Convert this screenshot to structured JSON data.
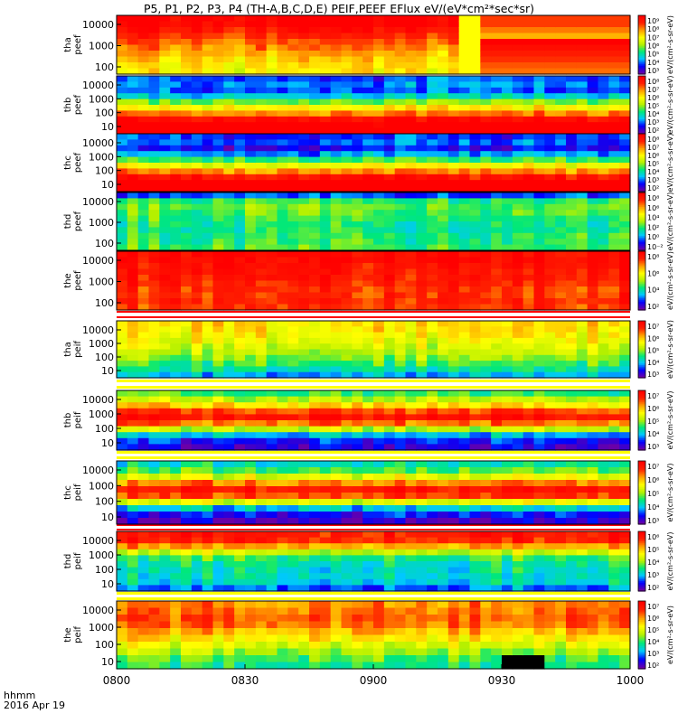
{
  "title": "P5, P1, P2, P3, P4 (TH-A,B,C,D,E) PEIF,PEEF EFlux eV/(eV*cm²*sec*sr)",
  "footer": {
    "line1": "hhmm",
    "line2": "2016 Apr 19"
  },
  "colors": {
    "scale": [
      "#6a00a8",
      "#0000ff",
      "#00c8ff",
      "#00e87a",
      "#b4f000",
      "#ffff00",
      "#ffa000",
      "#ff2000",
      "#ff0000"
    ],
    "gap_stripe": "#ffff00",
    "gap_red": "#ff0000"
  },
  "chart_data": {
    "type": "heatmap",
    "x_axis": {
      "label": "hhmm",
      "date": "2016 Apr 19",
      "ticks": [
        "0800",
        "0830",
        "0900",
        "0930",
        "1000"
      ],
      "range": [
        "0800",
        "1000"
      ]
    },
    "colorbar_scale": "log",
    "panels": [
      {
        "id": "tha-peef",
        "label_line1": "tha",
        "label_line2": "peef",
        "y_ticks": [
          "10000",
          "1000",
          "100"
        ],
        "colorbar_ticks": [
          "10⁹",
          "10⁸",
          "10⁷",
          "10⁶",
          "10⁵",
          "10⁴",
          "10³"
        ],
        "colorbar_label": "eV/(cm²-s-sr-eV)",
        "profile": [
          8,
          8,
          7.5,
          7,
          6.6,
          6.2,
          5.8,
          5.5,
          5.2,
          5
        ],
        "event": "gap-near-0925"
      },
      {
        "id": "thb-peef",
        "label_line1": "thb",
        "label_line2": "peef",
        "y_ticks": [
          "10000",
          "1000",
          "100",
          "10"
        ],
        "colorbar_ticks": [
          "10⁸",
          "10⁷",
          "10⁶",
          "10⁵",
          "10⁴",
          "10³",
          "10²"
        ],
        "colorbar_label": "eV/(cm²-s-sr-eV)",
        "profile": [
          1.3,
          1.6,
          1.4,
          2.2,
          3.6,
          5,
          6.2,
          7.6,
          8.6,
          8.8
        ]
      },
      {
        "id": "thc-peef",
        "label_line1": "thc",
        "label_line2": "peef",
        "y_ticks": [
          "10000",
          "1000",
          "100",
          "10"
        ],
        "colorbar_ticks": [
          "10⁸",
          "10⁷",
          "10⁶",
          "10⁵",
          "10⁴",
          "10³",
          "10²"
        ],
        "colorbar_label": "eV/(cm²-s-sr-eV)",
        "profile": [
          1.2,
          1.4,
          0.8,
          1.8,
          3.2,
          4.8,
          6.2,
          7.5,
          8.5,
          8.8
        ]
      },
      {
        "id": "thd-peef",
        "label_line1": "thd",
        "label_line2": "peef",
        "y_ticks": [
          "10000",
          "1000",
          "100"
        ],
        "colorbar_ticks": [
          "10⁸",
          "10⁶",
          "10⁴",
          "10²",
          "10⁰",
          "10⁻²"
        ],
        "colorbar_label": "eV/(cm²-s-sr-eV)",
        "profile": [
          1.4,
          3.2,
          3.6,
          3.4,
          3.2,
          3,
          3,
          3.1,
          3.2,
          3.4
        ]
      },
      {
        "id": "the-peef",
        "label_line1": "the",
        "label_line2": "peef",
        "y_ticks": [
          "10000",
          "1000",
          "100"
        ],
        "colorbar_ticks": [
          "10⁸",
          "10⁶",
          "10⁴",
          "10²"
        ],
        "colorbar_label": "eV/(cm²-s-sr-eV)",
        "profile": [
          7.8,
          7.8,
          7.6,
          7.5,
          7.4,
          7.2,
          7,
          7,
          7.1,
          7
        ]
      },
      {
        "id": "tha-peif",
        "label_line1": "tha",
        "label_line2": "peif",
        "y_ticks": [
          "10000",
          "1000",
          "100",
          "10"
        ],
        "colorbar_ticks": [
          "10⁷",
          "10⁶",
          "10⁵",
          "10⁴",
          "10³"
        ],
        "colorbar_label": "eV/(cm²-s-sr-eV)",
        "profile": [
          5.3,
          5.2,
          5,
          4.8,
          4.5,
          4.2,
          3.8,
          3.3,
          2.8,
          2
        ]
      },
      {
        "id": "thb-peif",
        "label_line1": "thb",
        "label_line2": "peif",
        "y_ticks": [
          "10000",
          "1000",
          "100",
          "10"
        ],
        "colorbar_ticks": [
          "10⁷",
          "10⁶",
          "10⁵",
          "10⁴",
          "10³"
        ],
        "colorbar_label": "eV/(cm²-s-sr-eV)",
        "profile": [
          3.2,
          4.2,
          5.4,
          6.8,
          7.5,
          6.4,
          4.2,
          2,
          1,
          0.6
        ]
      },
      {
        "id": "thc-peif",
        "label_line1": "thc",
        "label_line2": "peif",
        "y_ticks": [
          "10000",
          "1000",
          "100",
          "10"
        ],
        "colorbar_ticks": [
          "10⁷",
          "10⁶",
          "10⁵",
          "10⁴",
          "10³"
        ],
        "colorbar_label": "eV/(cm²-s-sr-eV)",
        "profile": [
          2.6,
          3.4,
          4.6,
          6.2,
          7.4,
          6.8,
          4.6,
          2.2,
          0.9,
          0.4
        ]
      },
      {
        "id": "thd-peif",
        "label_line1": "thd",
        "label_line2": "peif",
        "y_ticks": [
          "10000",
          "1000",
          "100",
          "10"
        ],
        "colorbar_ticks": [
          "10⁶",
          "10⁵",
          "10⁴",
          "10³",
          "10²"
        ],
        "colorbar_label": "eV/(cm²-s-sr-eV)",
        "profile": [
          7.4,
          7.2,
          6,
          4.4,
          3.2,
          2.8,
          2.6,
          2.6,
          2.4,
          1.6
        ]
      },
      {
        "id": "the-peif",
        "label_line1": "the",
        "label_line2": "peif",
        "y_ticks": [
          "10000",
          "1000",
          "100",
          "10"
        ],
        "colorbar_ticks": [
          "10⁷",
          "10⁶",
          "10⁵",
          "10⁴",
          "10³",
          "10²"
        ],
        "colorbar_label": "eV/(cm²-s-sr-eV)",
        "profile": [
          6.2,
          6.4,
          6.6,
          6.4,
          5.8,
          5.2,
          4.6,
          4,
          3.4,
          3
        ],
        "event": "dropout-near-0940"
      }
    ]
  }
}
